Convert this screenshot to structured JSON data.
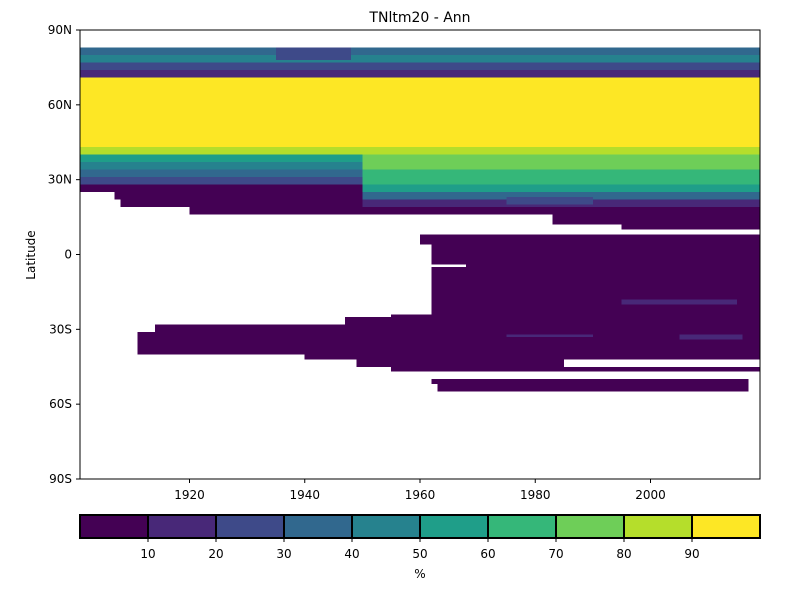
{
  "chart_data": {
    "type": "heatmap",
    "title": "TNltm20 - Ann",
    "xlabel": "",
    "ylabel": "Latitude",
    "xlim": [
      1901,
      2019
    ],
    "ylim": [
      -90,
      90
    ],
    "x_ticks": [
      {
        "value": 1920,
        "label": "1920"
      },
      {
        "value": 1940,
        "label": "1940"
      },
      {
        "value": 1960,
        "label": "1960"
      },
      {
        "value": 1980,
        "label": "1980"
      },
      {
        "value": 2000,
        "label": "2000"
      }
    ],
    "y_ticks": [
      {
        "value": 90,
        "label": "90N"
      },
      {
        "value": 60,
        "label": "60N"
      },
      {
        "value": 30,
        "label": "30N"
      },
      {
        "value": 0,
        "label": "0"
      },
      {
        "value": -30,
        "label": "30S"
      },
      {
        "value": -60,
        "label": "60S"
      },
      {
        "value": -90,
        "label": "90S"
      }
    ],
    "colorbar": {
      "label": "%",
      "range": [
        0,
        100
      ],
      "tick_values": [
        10,
        20,
        30,
        40,
        50,
        60,
        70,
        80,
        90
      ],
      "tick_labels": [
        "10",
        "20",
        "30",
        "40",
        "50",
        "60",
        "70",
        "80",
        "90"
      ],
      "colors": [
        "#440154",
        "#482878",
        "#3e4a89",
        "#31688e",
        "#26828e",
        "#1f9e89",
        "#35b779",
        "#6ece58",
        "#b5de2b",
        "#fde725"
      ]
    },
    "bands": [
      {
        "lat": [
          80,
          83
        ],
        "segments": [
          {
            "x": [
              1901,
              2019
            ],
            "value": 35
          }
        ]
      },
      {
        "lat": [
          77,
          80
        ],
        "segments": [
          {
            "x": [
              1901,
              2019
            ],
            "value": 45
          }
        ]
      },
      {
        "lat": [
          74,
          77
        ],
        "segments": [
          {
            "x": [
              1901,
              2019
            ],
            "value": 25
          }
        ]
      },
      {
        "lat": [
          71,
          74
        ],
        "segments": [
          {
            "x": [
              1901,
              2019
            ],
            "value": 15
          }
        ]
      },
      {
        "lat": [
          43,
          71
        ],
        "segments": [
          {
            "x": [
              1901,
              2019
            ],
            "value": 95
          }
        ]
      },
      {
        "lat": [
          40,
          43
        ],
        "segments": [
          {
            "x": [
              1901,
              2019
            ],
            "value": 85
          }
        ]
      },
      {
        "lat": [
          37,
          40
        ],
        "segments": [
          {
            "x": [
              1901,
              1950
            ],
            "value": 55
          },
          {
            "x": [
              1950,
              2019
            ],
            "value": 75
          }
        ]
      },
      {
        "lat": [
          34,
          37
        ],
        "segments": [
          {
            "x": [
              1901,
              1950
            ],
            "value": 45
          },
          {
            "x": [
              1950,
              2019
            ],
            "value": 75
          }
        ]
      },
      {
        "lat": [
          31,
          34
        ],
        "segments": [
          {
            "x": [
              1901,
              1950
            ],
            "value": 35
          },
          {
            "x": [
              1950,
              2019
            ],
            "value": 65
          }
        ]
      },
      {
        "lat": [
          28,
          31
        ],
        "segments": [
          {
            "x": [
              1901,
              1950
            ],
            "value": 25
          },
          {
            "x": [
              1950,
              2019
            ],
            "value": 65
          }
        ]
      },
      {
        "lat": [
          25,
          28
        ],
        "segments": [
          {
            "x": [
              1901,
              1950
            ],
            "value": 5
          },
          {
            "x": [
              1950,
              2019
            ],
            "value": 55
          }
        ]
      },
      {
        "lat": [
          22,
          25
        ],
        "segments": [
          {
            "x": [
              1907,
              1950
            ],
            "value": 5
          },
          {
            "x": [
              1950,
              2019
            ],
            "value": 35
          }
        ]
      },
      {
        "lat": [
          19,
          22
        ],
        "segments": [
          {
            "x": [
              1908,
              1950
            ],
            "value": 5
          },
          {
            "x": [
              1950,
              2019
            ],
            "value": 15
          }
        ]
      },
      {
        "lat": [
          16,
          19
        ],
        "segments": [
          {
            "x": [
              1920,
              1950
            ],
            "value": 5
          },
          {
            "x": [
              1950,
              2019
            ],
            "value": 5
          }
        ]
      },
      {
        "lat": [
          10,
          16
        ],
        "segments": [
          {
            "x": [
              1983,
              2019
            ],
            "value": 5
          }
        ]
      },
      {
        "lat": [
          4,
          8
        ],
        "segments": [
          {
            "x": [
              1960,
              2019
            ],
            "value": 5
          }
        ]
      },
      {
        "lat": [
          -10,
          4
        ],
        "segments": [
          {
            "x": [
              1962,
              2019
            ],
            "value": 5
          }
        ]
      },
      {
        "lat": [
          -18,
          -10
        ],
        "segments": [
          {
            "x": [
              1962,
              2019
            ],
            "value": 5
          }
        ]
      },
      {
        "lat": [
          -24,
          -18
        ],
        "segments": [
          {
            "x": [
              1962,
              2019
            ],
            "value": 5
          }
        ]
      },
      {
        "lat": [
          -28,
          -24
        ],
        "segments": [
          {
            "x": [
              1947,
              2019
            ],
            "value": 5
          }
        ]
      },
      {
        "lat": [
          -31,
          -28
        ],
        "segments": [
          {
            "x": [
              1914,
              2019
            ],
            "value": 5
          }
        ]
      },
      {
        "lat": [
          -34,
          -31
        ],
        "segments": [
          {
            "x": [
              1911,
              2019
            ],
            "value": 5
          }
        ]
      },
      {
        "lat": [
          -37,
          -34
        ],
        "segments": [
          {
            "x": [
              1911,
              2019
            ],
            "value": 5
          }
        ]
      },
      {
        "lat": [
          -40,
          -37
        ],
        "segments": [
          {
            "x": [
              1911,
              2019
            ],
            "value": 5
          }
        ]
      },
      {
        "lat": [
          -42,
          -40
        ],
        "segments": [
          {
            "x": [
              1940,
              2019
            ],
            "value": 5
          }
        ]
      },
      {
        "lat": [
          -45,
          -42
        ],
        "segments": [
          {
            "x": [
              1949,
              2019
            ],
            "value": 5
          }
        ]
      },
      {
        "lat": [
          -47,
          -45
        ],
        "segments": [
          {
            "x": [
              1955,
              2019
            ],
            "value": 5
          }
        ]
      },
      {
        "lat": [
          -52,
          -50
        ],
        "segments": [
          {
            "x": [
              1962,
              2017
            ],
            "value": 5
          }
        ]
      },
      {
        "lat": [
          -55,
          -52
        ],
        "segments": [
          {
            "x": [
              1963,
              2017
            ],
            "value": 5
          }
        ]
      }
    ],
    "patches": [
      {
        "lat": [
          -20,
          -18
        ],
        "x": [
          1995,
          2015
        ],
        "value": 15
      },
      {
        "lat": [
          -34,
          -32
        ],
        "x": [
          2005,
          2016
        ],
        "value": 15
      },
      {
        "lat": [
          -33,
          -32
        ],
        "x": [
          1975,
          1990
        ],
        "value": 15
      },
      {
        "lat": [
          78,
          83
        ],
        "x": [
          1935,
          1948
        ],
        "value": 25
      },
      {
        "lat": [
          20,
          23
        ],
        "x": [
          1975,
          1990
        ],
        "value": 25
      }
    ],
    "gaps": [
      {
        "lat": [
          -45,
          -42
        ],
        "x": [
          1985,
          2019
        ]
      },
      {
        "lat": [
          10,
          12
        ],
        "x": [
          1983,
          1995
        ]
      },
      {
        "lat": [
          -5,
          -4
        ],
        "x": [
          1962,
          1968
        ]
      },
      {
        "lat": [
          -25,
          -24
        ],
        "x": [
          1947,
          1955
        ]
      }
    ]
  }
}
